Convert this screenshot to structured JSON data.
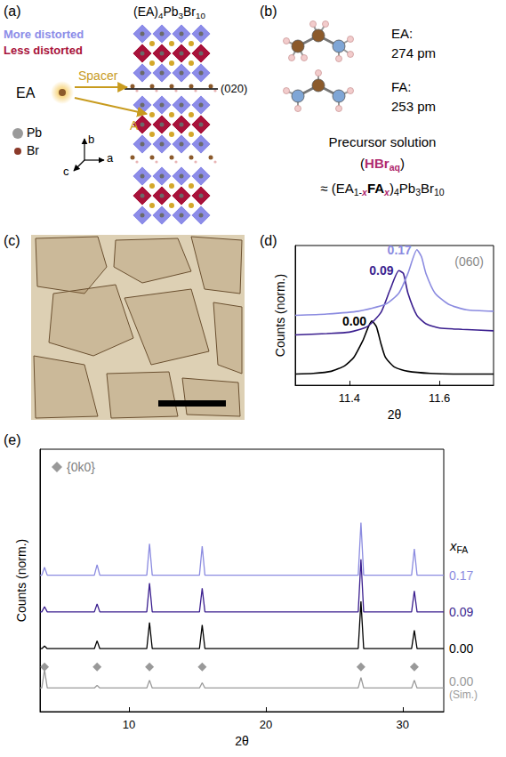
{
  "panels": {
    "a": {
      "letter": "(a)",
      "formula": [
        {
          "text": "(EA)"
        },
        {
          "text": "4",
          "sub": true
        },
        {
          "text": "Pb"
        },
        {
          "text": "3",
          "sub": true
        },
        {
          "text": "Br"
        },
        {
          "text": "10",
          "sub": true
        }
      ],
      "legend": [
        {
          "text": "More distorted",
          "color": "#8c8ce8"
        },
        {
          "text": "Less distorted",
          "color": "#a8123a"
        }
      ],
      "spacer_label": "Spacer",
      "a_site_label": "A",
      "molecule_label": "EA",
      "atoms": [
        {
          "text": "Pb",
          "color": "#9a9a9a"
        },
        {
          "text": "Br",
          "color": "#8b3a2a"
        }
      ],
      "axes": [
        "b",
        "a",
        "c"
      ],
      "plane": "(020)"
    },
    "b": {
      "letter": "(b)",
      "molecules": [
        {
          "name": "EA:",
          "length": "274 pm"
        },
        {
          "name": "FA:",
          "length": "253 pm"
        }
      ],
      "solution_title": "Precursor solution",
      "solvent": [
        {
          "text": "("
        },
        {
          "text": "HBr",
          "bold": true,
          "color": "#b02a6e"
        },
        {
          "text": "aq",
          "sub": true,
          "bold": true,
          "color": "#b02a6e"
        },
        {
          "text": ")"
        }
      ],
      "composition": [
        {
          "text": "≈ (EA"
        },
        {
          "text": "1-",
          "sub": true
        },
        {
          "text": "x",
          "sub": true,
          "bold": true,
          "italic": true,
          "color": "#b02a6e"
        },
        {
          "text": "FA",
          "bold": true
        },
        {
          "text": "x",
          "sub": true,
          "bold": true,
          "italic": true,
          "color": "#b02a6e"
        },
        {
          "text": ")"
        },
        {
          "text": "4",
          "sub": true
        },
        {
          "text": "Pb"
        },
        {
          "text": "3",
          "sub": true
        },
        {
          "text": "Br"
        },
        {
          "text": "10",
          "sub": true
        }
      ]
    },
    "c": {
      "letter": "(c)"
    }
  },
  "chart_data": [
    {
      "type": "line",
      "letter": "(d)",
      "x_label": "2θ",
      "y_label": "Counts (norm.)",
      "annotation": "(060)",
      "xlim": [
        11.28,
        11.72
      ],
      "xticks": [
        11.4,
        11.6
      ],
      "ylim": [
        0,
        1
      ],
      "tick_labels": "x",
      "grid": false,
      "series": [
        {
          "name": "0.00",
          "color": "#000000",
          "x": [
            11.28,
            11.32,
            11.36,
            11.39,
            11.41,
            11.43,
            11.45,
            11.46,
            11.47,
            11.48,
            11.5,
            11.53,
            11.58,
            11.65,
            11.72
          ],
          "values": [
            0.08,
            0.085,
            0.1,
            0.14,
            0.2,
            0.32,
            0.46,
            0.42,
            0.3,
            0.2,
            0.13,
            0.1,
            0.085,
            0.08,
            0.08
          ]
        },
        {
          "name": "0.09",
          "color": "#3b1f8f",
          "x": [
            11.28,
            11.35,
            11.4,
            11.44,
            11.47,
            11.49,
            11.51,
            11.52,
            11.53,
            11.55,
            11.57,
            11.6,
            11.65,
            11.72
          ],
          "values": [
            0.36,
            0.37,
            0.38,
            0.42,
            0.52,
            0.68,
            0.82,
            0.8,
            0.66,
            0.5,
            0.44,
            0.41,
            0.4,
            0.39
          ]
        },
        {
          "name": "0.17",
          "color": "#8b8be0",
          "x": [
            11.28,
            11.35,
            11.42,
            11.48,
            11.51,
            11.53,
            11.55,
            11.56,
            11.57,
            11.59,
            11.62,
            11.66,
            11.72
          ],
          "values": [
            0.5,
            0.51,
            0.53,
            0.58,
            0.66,
            0.8,
            0.97,
            0.92,
            0.8,
            0.66,
            0.58,
            0.54,
            0.53
          ]
        }
      ]
    },
    {
      "type": "line",
      "letter": "(e)",
      "x_label": "2θ",
      "y_label": "Counts (norm.)",
      "series_title": [
        {
          "text": "x",
          "italic": true
        },
        {
          "text": "FA",
          "sub": true
        }
      ],
      "xlim": [
        3.5,
        33
      ],
      "xticks": [
        10,
        20,
        30
      ],
      "ylim": [
        0,
        1
      ],
      "tick_labels": "x",
      "grid": false,
      "legend": "upper left",
      "series": [
        {
          "name": "0.17",
          "color": "#8b8be0",
          "x": [
            3.5,
            3.63,
            3.83,
            4.03,
            7.47,
            7.67,
            7.87,
            11.3,
            11.5,
            11.7,
            15.15,
            15.35,
            15.55,
            26.75,
            26.95,
            27.15,
            30.65,
            30.85,
            31.05,
            33
          ],
          "values": [
            0.52,
            0.52,
            0.55,
            0.52,
            0.52,
            0.56,
            0.52,
            0.52,
            0.64,
            0.52,
            0.52,
            0.63,
            0.52,
            0.52,
            0.72,
            0.52,
            0.52,
            0.62,
            0.52,
            0.52
          ]
        },
        {
          "name": "0.09",
          "color": "#3b1f8f",
          "x": [
            3.5,
            3.63,
            3.83,
            4.03,
            7.47,
            7.67,
            7.87,
            11.3,
            11.5,
            11.7,
            15.15,
            15.35,
            15.55,
            26.75,
            26.95,
            27.15,
            30.65,
            30.85,
            31.05,
            33
          ],
          "values": [
            0.38,
            0.38,
            0.4,
            0.38,
            0.38,
            0.41,
            0.38,
            0.38,
            0.49,
            0.38,
            0.38,
            0.47,
            0.38,
            0.38,
            0.58,
            0.38,
            0.38,
            0.46,
            0.38,
            0.38
          ]
        },
        {
          "name": "0.00",
          "color": "#000000",
          "x": [
            3.5,
            3.63,
            3.83,
            4.03,
            7.47,
            7.67,
            7.87,
            11.3,
            11.5,
            11.7,
            15.15,
            15.35,
            15.55,
            26.75,
            26.95,
            27.15,
            30.65,
            30.85,
            31.05,
            33
          ],
          "values": [
            0.24,
            0.24,
            0.25,
            0.24,
            0.24,
            0.27,
            0.24,
            0.24,
            0.34,
            0.24,
            0.24,
            0.33,
            0.24,
            0.24,
            0.42,
            0.24,
            0.24,
            0.31,
            0.24,
            0.24
          ]
        },
        {
          "name": "0.00",
          "sublabel": "(Sim.)",
          "color": "#9a9a9a",
          "x": [
            3.5,
            3.63,
            3.83,
            4.03,
            7.47,
            7.67,
            7.87,
            11.3,
            11.5,
            11.7,
            15.15,
            15.35,
            15.55,
            26.75,
            26.95,
            27.15,
            30.65,
            30.85,
            31.05,
            33
          ],
          "values": [
            0.09,
            0.09,
            0.16,
            0.09,
            0.09,
            0.1,
            0.09,
            0.09,
            0.12,
            0.09,
            0.09,
            0.11,
            0.09,
            0.09,
            0.13,
            0.09,
            0.09,
            0.12,
            0.09,
            0.09
          ]
        },
        {
          "name": "{0k0}",
          "type": "scatter",
          "marker": "diamond",
          "color": "#808080",
          "x": [
            3.83,
            7.67,
            11.5,
            15.35,
            26.95,
            30.85
          ],
          "values": [
            0.17,
            0.17,
            0.17,
            0.17,
            0.17,
            0.17
          ]
        }
      ]
    }
  ]
}
